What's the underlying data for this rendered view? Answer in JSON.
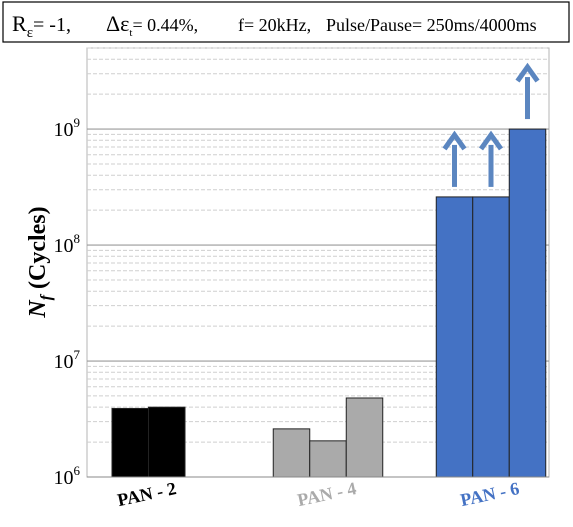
{
  "header": {
    "r_main": "R",
    "r_sub": "ε",
    "r_value": "= -1,",
    "de_main": "Δε",
    "de_sub": "t",
    "de_value": "= 0.44%,",
    "freq": "f= 20kHz,",
    "pulse": "Pulse/Pause= 250ms/4000ms"
  },
  "chart_data": {
    "type": "bar",
    "y_scale": "log",
    "ylim": [
      1000000,
      5000000000
    ],
    "ylabel_main": "N",
    "ylabel_sub": "f",
    "ylabel_rest": "(Cycles)",
    "yticks": [
      {
        "value": 1000000,
        "base": "10",
        "exp": "6"
      },
      {
        "value": 10000000,
        "base": "10",
        "exp": "7"
      },
      {
        "value": 100000000,
        "base": "10",
        "exp": "8"
      },
      {
        "value": 1000000000,
        "base": "10",
        "exp": "9"
      }
    ],
    "grid": true,
    "groups": [
      {
        "label": "PAN - 2",
        "color": "#000000",
        "label_color": "#000000",
        "values": [
          3900000,
          4000000
        ],
        "runouts": [
          false,
          false
        ]
      },
      {
        "label": "PAN - 4",
        "color": "#aaaaaa",
        "label_color": "#aaaaaa",
        "values": [
          2600000,
          2050000,
          4800000
        ],
        "runouts": [
          false,
          false,
          false
        ]
      },
      {
        "label": "PAN - 6",
        "color": "#4472c4",
        "label_color": "#4472c4",
        "values": [
          260000000,
          260000000,
          1000000000
        ],
        "runouts": [
          true,
          true,
          true
        ]
      }
    ],
    "arrow_color": "#5b86c0"
  }
}
